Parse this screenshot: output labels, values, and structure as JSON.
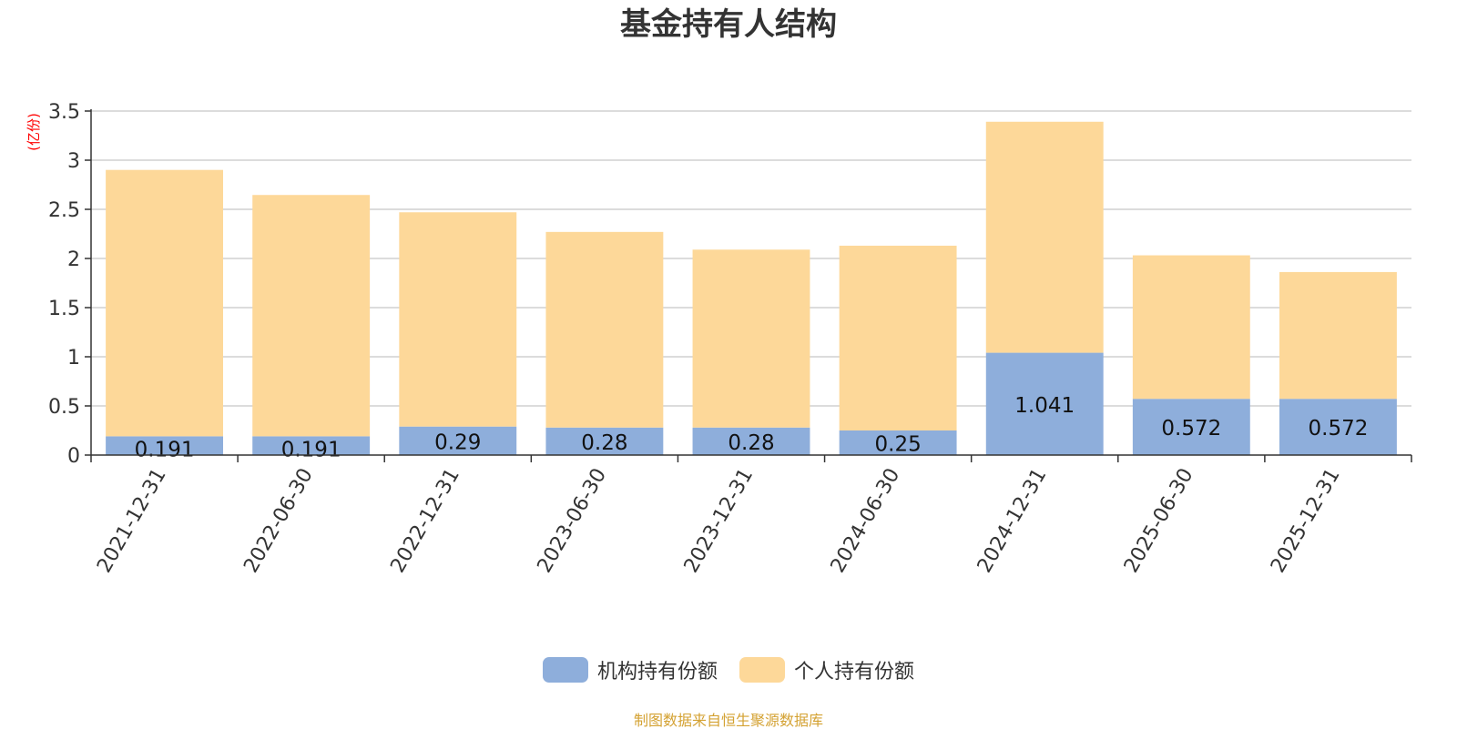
{
  "chart_data": {
    "type": "bar",
    "stacked": true,
    "title": "基金持有人结构",
    "ylabel": "(亿份)",
    "xlabel": "",
    "ylim": [
      0,
      3.5
    ],
    "yticks": [
      "0",
      "0.5",
      "1",
      "1.5",
      "2",
      "2.5",
      "3",
      "3.5"
    ],
    "grid": true,
    "legend_position": "bottom",
    "categories": [
      "2021-12-31",
      "2022-06-30",
      "2022-12-31",
      "2023-06-30",
      "2023-12-31",
      "2024-06-30",
      "2024-12-31",
      "2025-06-30",
      "2025-12-31"
    ],
    "series": [
      {
        "name": "机构持有份额",
        "color": "#8eaedb",
        "values": [
          0.191,
          0.191,
          0.29,
          0.28,
          0.28,
          0.25,
          1.041,
          0.572,
          0.572
        ],
        "labels": [
          "0.191",
          "0.191",
          "0.29",
          "0.28",
          "0.28",
          "0.25",
          "1.041",
          "0.572",
          "0.572"
        ]
      },
      {
        "name": "个人持有份额",
        "color": "#fdd899",
        "values": [
          2.71,
          2.455,
          2.18,
          1.99,
          1.81,
          1.88,
          2.35,
          1.46,
          1.29
        ]
      }
    ]
  },
  "source_note": "制图数据来自恒生聚源数据库"
}
